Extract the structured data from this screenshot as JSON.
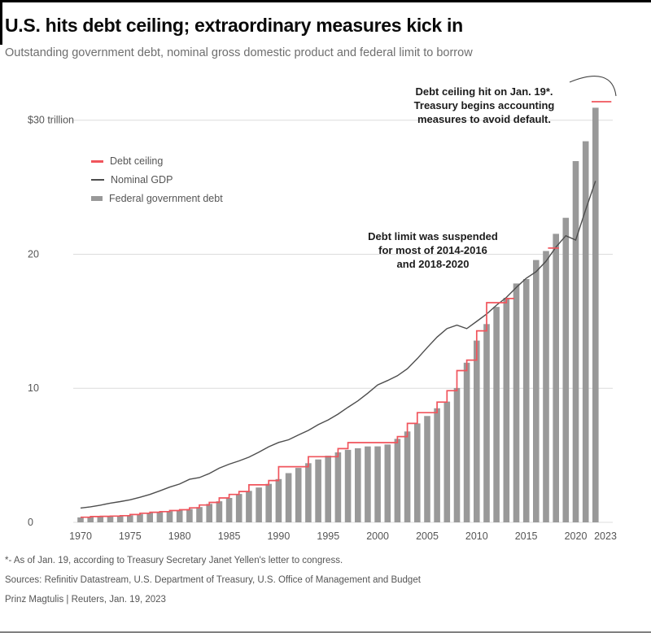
{
  "header": {
    "title": "U.S. hits debt ceiling; extraordinary measures kick in",
    "subtitle": "Outstanding government debt, nominal gross domestic product and federal limit to borrow"
  },
  "colors": {
    "debt_ceiling": "#f0545c",
    "nominal_gdp": "#4d4d4d",
    "federal_debt": "#999999",
    "gridline": "#dcdcdc",
    "axis_text": "#555555",
    "annotation_arrow": "#444444"
  },
  "annotations": {
    "ceiling_hit": "Debt ceiling hit on Jan. 19*.\nTreasury begins accounting\nmeasures to avoid default.",
    "suspended": "Debt limit was suspended\nfor most of 2014-2016\nand 2018-2020"
  },
  "footnotes": {
    "asterisk": "*- As of Jan. 19, according to Treasury Secretary Janet Yellen's letter to congress.",
    "sources": "Sources: Refinitiv Datastream, U.S. Department of Treasury, U.S. Office of Management and Budget",
    "byline": "Prinz Magtulis | Reuters, Jan. 19, 2023"
  },
  "chart_data": {
    "type": "bar",
    "title": "U.S. hits debt ceiling; extraordinary measures kick in",
    "subtitle": "Outstanding government debt, nominal gross domestic product and federal limit to borrow",
    "unit": "trillion USD",
    "xlabel": "",
    "ylabel": "",
    "ylim": [
      0,
      33.2
    ],
    "grid": true,
    "legend_position": "upper-left-inside",
    "yticks": [
      {
        "value": 30,
        "label": "$30 trillion"
      },
      {
        "value": 20,
        "label": "20"
      },
      {
        "value": 10,
        "label": "10"
      },
      {
        "value": 0,
        "label": "0"
      }
    ],
    "xticks": [
      1970,
      1975,
      1980,
      1985,
      1990,
      1995,
      2000,
      2005,
      2010,
      2015,
      2020,
      2023
    ],
    "legend": [
      {
        "label": "Debt ceiling",
        "swatch": "red-line"
      },
      {
        "label": "Nominal GDP",
        "swatch": "gray-line"
      },
      {
        "label": "Federal government debt",
        "swatch": "gray-bar"
      }
    ],
    "series": [
      {
        "name": "Federal government debt",
        "type": "bar",
        "years": [
          1970,
          1971,
          1972,
          1973,
          1974,
          1975,
          1976,
          1977,
          1978,
          1979,
          1980,
          1981,
          1982,
          1983,
          1984,
          1985,
          1986,
          1987,
          1988,
          1989,
          1990,
          1991,
          1992,
          1993,
          1994,
          1995,
          1996,
          1997,
          1998,
          1999,
          2000,
          2001,
          2002,
          2003,
          2004,
          2005,
          2006,
          2007,
          2008,
          2009,
          2010,
          2011,
          2012,
          2013,
          2014,
          2015,
          2016,
          2017,
          2018,
          2019,
          2020,
          2021,
          2022
        ],
        "values": [
          0.37,
          0.4,
          0.43,
          0.46,
          0.48,
          0.53,
          0.62,
          0.7,
          0.77,
          0.83,
          0.91,
          1.0,
          1.14,
          1.38,
          1.57,
          1.82,
          2.12,
          2.35,
          2.6,
          2.87,
          3.23,
          3.67,
          4.06,
          4.41,
          4.69,
          4.97,
          5.22,
          5.41,
          5.53,
          5.66,
          5.67,
          5.81,
          6.23,
          6.78,
          7.38,
          7.93,
          8.51,
          9.01,
          10.02,
          11.91,
          13.56,
          14.79,
          16.07,
          16.74,
          17.82,
          18.15,
          19.57,
          20.24,
          21.52,
          22.72,
          26.95,
          28.43,
          30.93
        ]
      },
      {
        "name": "Nominal GDP",
        "type": "line",
        "years": [
          1970,
          1971,
          1972,
          1973,
          1974,
          1975,
          1976,
          1977,
          1978,
          1979,
          1980,
          1981,
          1982,
          1983,
          1984,
          1985,
          1986,
          1987,
          1988,
          1989,
          1990,
          1991,
          1992,
          1993,
          1994,
          1995,
          1996,
          1997,
          1998,
          1999,
          2000,
          2001,
          2002,
          2003,
          2004,
          2005,
          2006,
          2007,
          2008,
          2009,
          2010,
          2011,
          2012,
          2013,
          2014,
          2015,
          2016,
          2017,
          2018,
          2019,
          2020,
          2021,
          2022
        ],
        "values": [
          1.07,
          1.16,
          1.28,
          1.43,
          1.55,
          1.68,
          1.87,
          2.08,
          2.35,
          2.63,
          2.86,
          3.21,
          3.34,
          3.64,
          4.04,
          4.34,
          4.58,
          4.86,
          5.24,
          5.64,
          5.96,
          6.16,
          6.52,
          6.86,
          7.29,
          7.64,
          8.07,
          8.58,
          9.06,
          9.63,
          10.25,
          10.58,
          10.94,
          11.46,
          12.21,
          13.04,
          13.82,
          14.45,
          14.71,
          14.45,
          14.99,
          15.54,
          16.2,
          16.78,
          17.53,
          18.21,
          18.7,
          19.48,
          20.53,
          21.38,
          21.06,
          23.32,
          25.46
        ]
      },
      {
        "name": "Debt ceiling",
        "type": "step",
        "note": "gaps where the limit was suspended (most of 2014-2016 and 2018-2020)",
        "segments": [
          [
            [
              1970,
              0.38
            ],
            [
              1971,
              0.43
            ],
            [
              1972,
              0.45
            ],
            [
              1973,
              0.47
            ],
            [
              1974,
              0.5
            ],
            [
              1975,
              0.58
            ],
            [
              1976,
              0.68
            ],
            [
              1977,
              0.75
            ],
            [
              1978,
              0.8
            ],
            [
              1979,
              0.88
            ],
            [
              1980,
              0.94
            ],
            [
              1981,
              1.08
            ],
            [
              1982,
              1.29
            ],
            [
              1983,
              1.49
            ],
            [
              1984,
              1.82
            ],
            [
              1985,
              2.08
            ],
            [
              1986,
              2.3
            ],
            [
              1987,
              2.8
            ],
            [
              1989,
              3.12
            ],
            [
              1990,
              4.15
            ],
            [
              1993,
              4.9
            ],
            [
              1996,
              5.5
            ],
            [
              1997,
              5.95
            ],
            [
              2002,
              6.4
            ],
            [
              2003,
              7.38
            ],
            [
              2004,
              8.18
            ],
            [
              2006,
              8.97
            ],
            [
              2007,
              9.82
            ],
            [
              2008,
              11.32
            ],
            [
              2009,
              12.1
            ],
            [
              2010,
              14.29
            ],
            [
              2011,
              16.39
            ],
            [
              2013,
              16.7
            ],
            [
              2013.8,
              16.7
            ]
          ],
          [
            [
              2017.2,
              20.46
            ],
            [
              2018.3,
              20.46
            ]
          ],
          [
            [
              2021.6,
              31.38
            ],
            [
              2023.6,
              31.38
            ]
          ]
        ]
      }
    ]
  }
}
